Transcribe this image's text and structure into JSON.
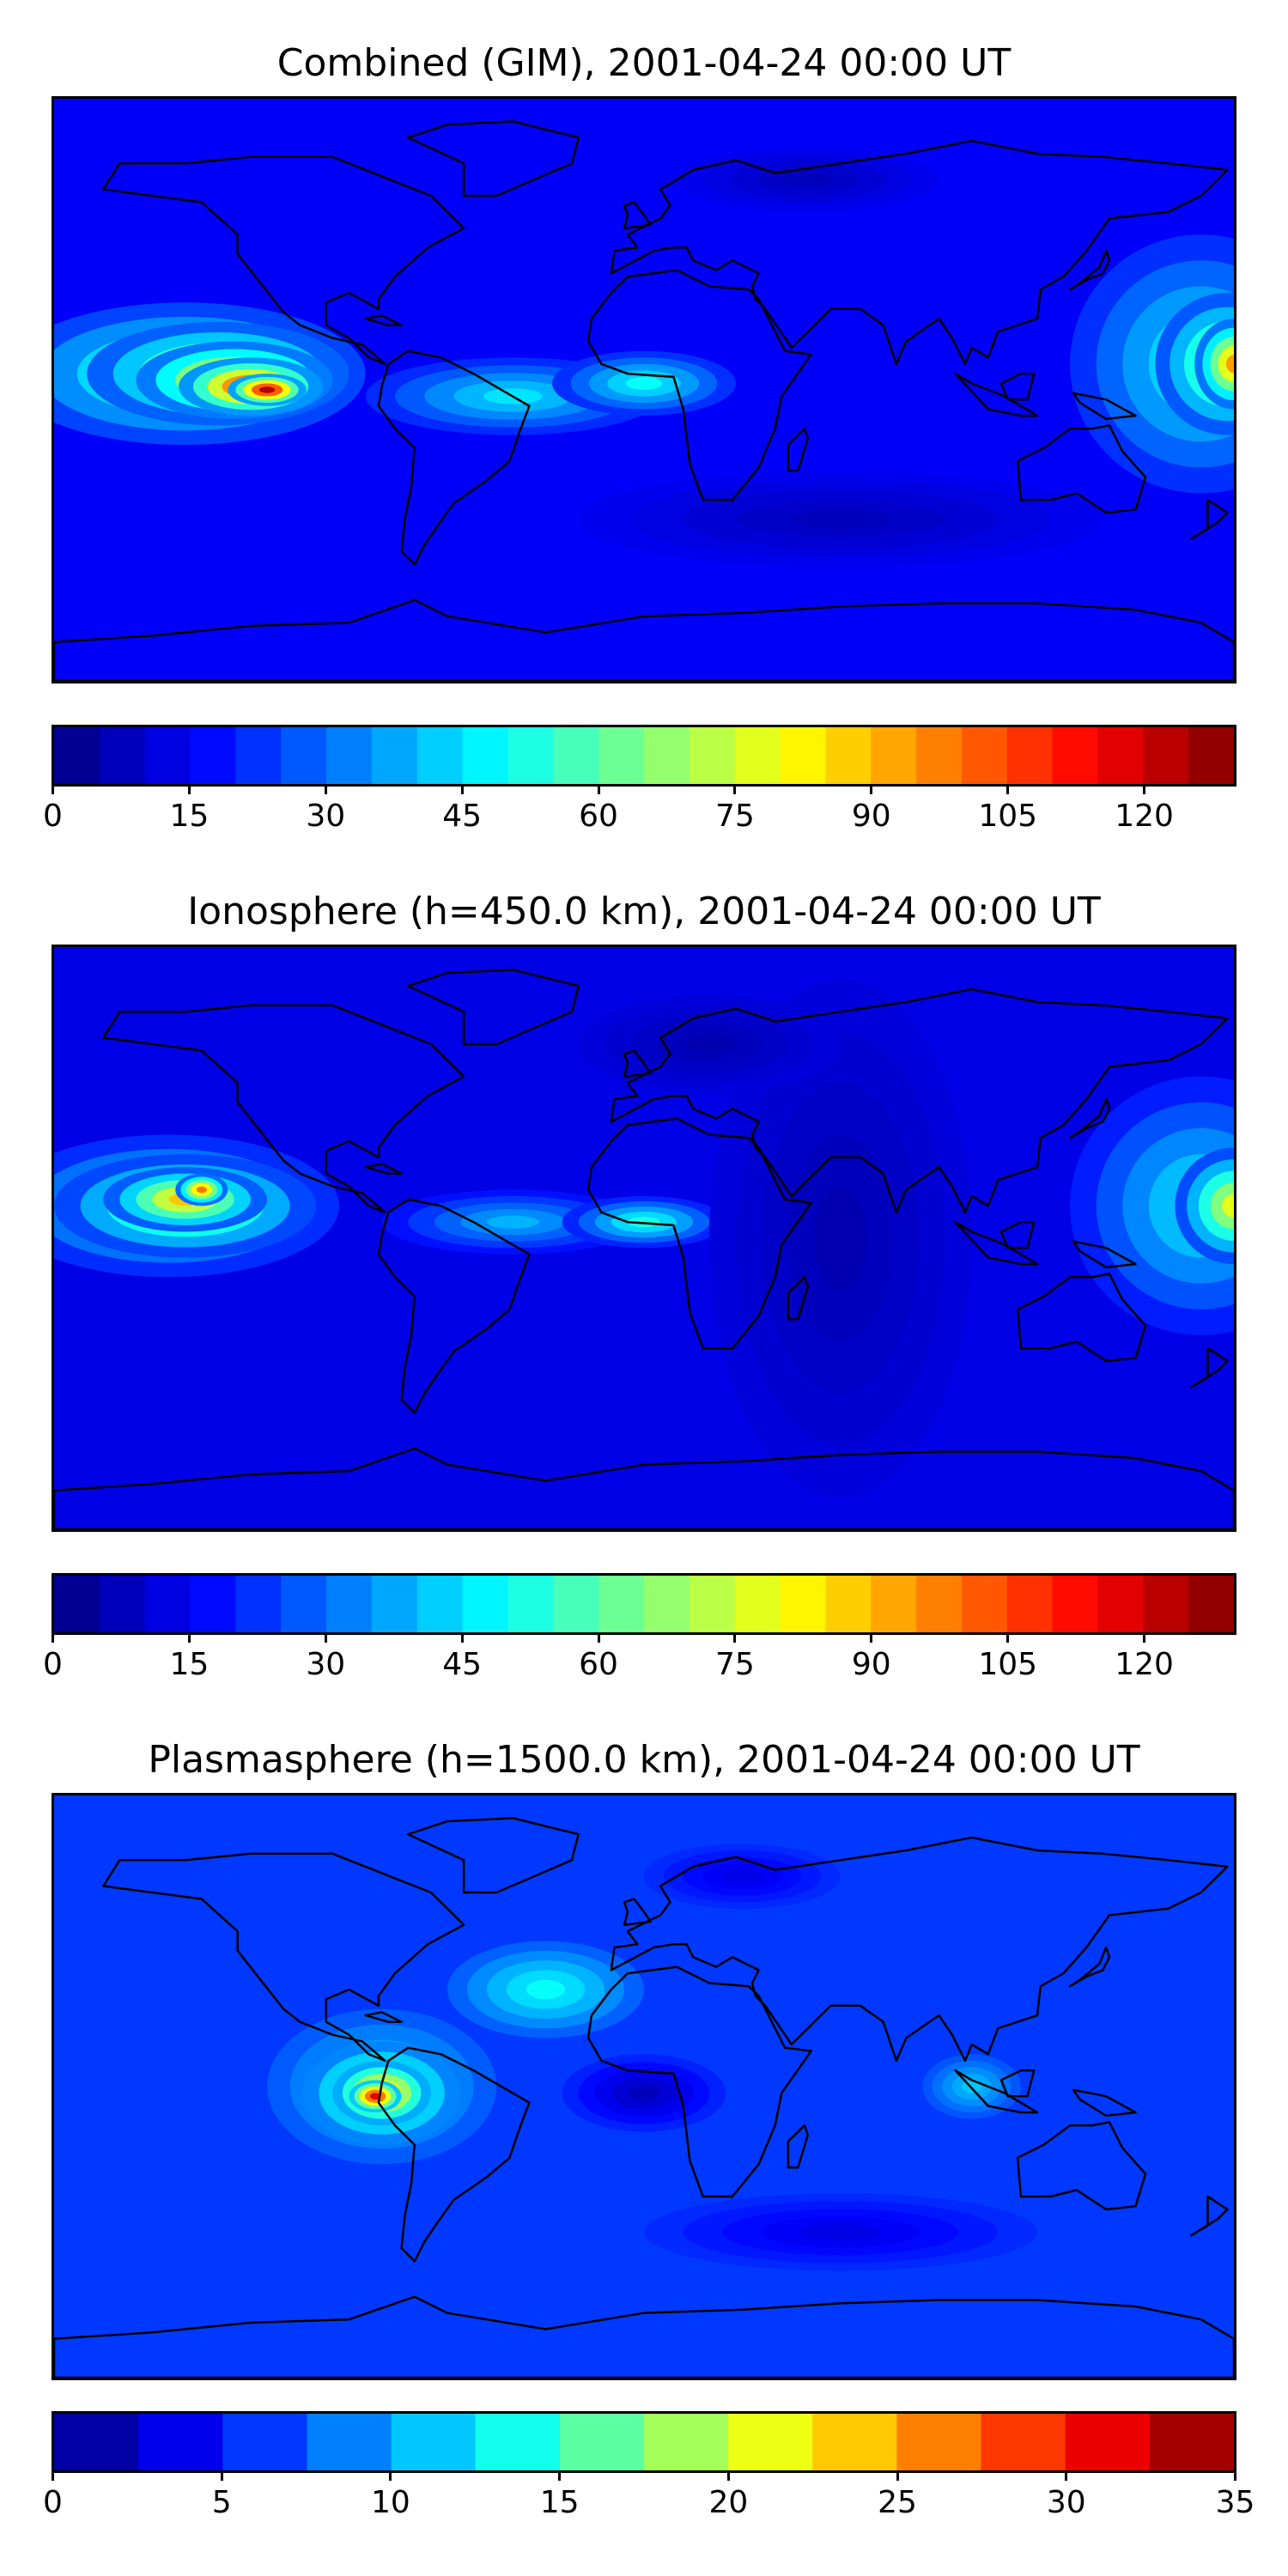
{
  "panels": [
    {
      "title": "Combined (GIM), 2001-04-24 00:00 UT",
      "colorbar": {
        "min": 0,
        "max": 130,
        "levels": 26,
        "tick_labels": [
          "0",
          "15",
          "30",
          "45",
          "60",
          "75",
          "90",
          "105",
          "120"
        ],
        "tick_values": [
          0,
          15,
          30,
          45,
          60,
          75,
          90,
          105,
          120
        ]
      },
      "map": {
        "background_level": 0.12,
        "features": [
          {
            "lon": -140,
            "lat": 5,
            "rx": 55,
            "ry": 22,
            "level": 0.48
          },
          {
            "lon": -130,
            "lat": 5,
            "rx": 40,
            "ry": 16,
            "level": 0.62
          },
          {
            "lon": -125,
            "lat": 3,
            "rx": 30,
            "ry": 12,
            "level": 0.75
          },
          {
            "lon": -120,
            "lat": 1,
            "rx": 22,
            "ry": 9,
            "level": 0.88
          },
          {
            "lon": -115,
            "lat": 0,
            "rx": 12,
            "ry": 5,
            "level": 0.95
          },
          {
            "lon": -40,
            "lat": -2,
            "rx": 45,
            "ry": 12,
            "level": 0.35
          },
          {
            "lon": 0,
            "lat": 2,
            "rx": 28,
            "ry": 10,
            "level": 0.38
          },
          {
            "lon": 170,
            "lat": 8,
            "rx": 40,
            "ry": 40,
            "level": 0.38
          },
          {
            "lon": 178,
            "lat": 8,
            "rx": 22,
            "ry": 22,
            "level": 0.58
          },
          {
            "lon": 180,
            "lat": 8,
            "rx": 12,
            "ry": 14,
            "level": 0.72
          },
          {
            "lon": 60,
            "lat": -40,
            "rx": 80,
            "ry": 15,
            "level": 0.06
          },
          {
            "lon": 50,
            "lat": 65,
            "rx": 40,
            "ry": 10,
            "level": 0.06
          }
        ]
      }
    },
    {
      "title": "Ionosphere  (h=450.0 km), 2001-04-24 00:00 UT",
      "colorbar": {
        "min": 0,
        "max": 130,
        "levels": 26,
        "tick_labels": [
          "0",
          "15",
          "30",
          "45",
          "60",
          "75",
          "90",
          "105",
          "120"
        ],
        "tick_values": [
          0,
          15,
          30,
          45,
          60,
          75,
          90,
          105,
          120
        ]
      },
      "map": {
        "background_level": 0.1,
        "features": [
          {
            "lon": -145,
            "lat": 10,
            "rx": 52,
            "ry": 22,
            "level": 0.44
          },
          {
            "lon": -140,
            "lat": 10,
            "rx": 40,
            "ry": 16,
            "level": 0.58
          },
          {
            "lon": -140,
            "lat": 12,
            "rx": 25,
            "ry": 10,
            "level": 0.68
          },
          {
            "lon": -135,
            "lat": 15,
            "rx": 8,
            "ry": 5,
            "level": 0.76
          },
          {
            "lon": -40,
            "lat": 5,
            "rx": 40,
            "ry": 10,
            "level": 0.3
          },
          {
            "lon": 0,
            "lat": 5,
            "rx": 25,
            "ry": 8,
            "level": 0.4
          },
          {
            "lon": 170,
            "lat": 10,
            "rx": 40,
            "ry": 40,
            "level": 0.36
          },
          {
            "lon": 180,
            "lat": 10,
            "rx": 18,
            "ry": 18,
            "level": 0.6
          },
          {
            "lon": 60,
            "lat": 0,
            "rx": 40,
            "ry": 80,
            "level": 0.05
          },
          {
            "lon": 20,
            "lat": 60,
            "rx": 40,
            "ry": 15,
            "level": 0.05
          }
        ]
      }
    },
    {
      "title": "Plasmasphere (h=1500.0 km), 2001-04-24 00:00 UT",
      "colorbar": {
        "min": 0,
        "max": 35,
        "levels": 14,
        "tick_labels": [
          "0",
          "5",
          "10",
          "15",
          "20",
          "25",
          "30",
          "35"
        ],
        "tick_values": [
          0,
          5,
          10,
          15,
          20,
          25,
          30,
          35
        ]
      },
      "map": {
        "background_level": 0.18,
        "features": [
          {
            "lon": -30,
            "lat": 30,
            "rx": 30,
            "ry": 15,
            "level": 0.38
          },
          {
            "lon": -80,
            "lat": 0,
            "rx": 35,
            "ry": 24,
            "level": 0.35
          },
          {
            "lon": -80,
            "lat": -2,
            "rx": 24,
            "ry": 16,
            "level": 0.55
          },
          {
            "lon": -80,
            "lat": -2,
            "rx": 15,
            "ry": 10,
            "level": 0.75
          },
          {
            "lon": -82,
            "lat": -3,
            "rx": 8,
            "ry": 5,
            "level": 0.9
          },
          {
            "lon": 0,
            "lat": -2,
            "rx": 25,
            "ry": 12,
            "level": 0.06
          },
          {
            "lon": 100,
            "lat": 0,
            "rx": 15,
            "ry": 10,
            "level": 0.32
          },
          {
            "lon": 60,
            "lat": -45,
            "rx": 60,
            "ry": 12,
            "level": 0.1
          },
          {
            "lon": 30,
            "lat": 65,
            "rx": 30,
            "ry": 10,
            "level": 0.1
          }
        ]
      }
    }
  ],
  "coastline_color": "#000000"
}
